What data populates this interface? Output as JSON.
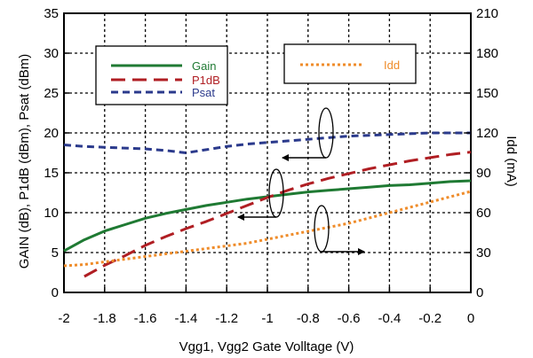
{
  "chart_data": {
    "type": "line",
    "title": "",
    "xlabel": "Vgg1, Vgg2  Gate Volltage (V)",
    "ylabel": "GAIN (dB), P1dB (dBm), Psat (dBm)",
    "y2label": "Idd (mA)",
    "xlim": [
      -2,
      0
    ],
    "ylim": [
      0,
      35
    ],
    "y2lim": [
      0,
      210
    ],
    "grid": true,
    "x_ticks": [
      "-2",
      "-1.8",
      "-1.6",
      "-1.4",
      "-1.2",
      "-1",
      "-0.8",
      "-0.6",
      "-0.4",
      "-0.2",
      "0"
    ],
    "y_ticks": [
      "0",
      "5",
      "10",
      "15",
      "20",
      "25",
      "30",
      "35"
    ],
    "y2_ticks": [
      "0",
      "30",
      "60",
      "90",
      "120",
      "150",
      "180",
      "210"
    ],
    "series": [
      {
        "name": "Gain",
        "axis": "left",
        "color": "#1f7a33",
        "dash": "solid",
        "x": [
          -2,
          -1.9,
          -1.8,
          -1.7,
          -1.6,
          -1.5,
          -1.4,
          -1.3,
          -1.2,
          -1.1,
          -1.0,
          -0.9,
          -0.8,
          -0.7,
          -0.6,
          -0.5,
          -0.4,
          -0.3,
          -0.2,
          -0.1,
          0
        ],
        "y": [
          5.2,
          6.6,
          7.7,
          8.5,
          9.3,
          9.9,
          10.4,
          10.9,
          11.3,
          11.7,
          12.0,
          12.3,
          12.6,
          12.8,
          13.0,
          13.2,
          13.4,
          13.5,
          13.7,
          13.9,
          14.0
        ]
      },
      {
        "name": "P1dB",
        "axis": "left",
        "color": "#b01e23",
        "dash": "long-dash",
        "x": [
          -1.9,
          -1.8,
          -1.7,
          -1.6,
          -1.5,
          -1.4,
          -1.3,
          -1.2,
          -1.1,
          -1.0,
          -0.9,
          -0.8,
          -0.7,
          -0.6,
          -0.5,
          -0.4,
          -0.3,
          -0.2,
          -0.1,
          0
        ],
        "y": [
          2.0,
          3.4,
          4.6,
          5.9,
          7.0,
          8.0,
          8.9,
          9.9,
          10.9,
          11.9,
          12.8,
          13.6,
          14.3,
          14.9,
          15.5,
          16.0,
          16.5,
          16.9,
          17.3,
          17.6
        ]
      },
      {
        "name": "Psat",
        "axis": "left",
        "color": "#2b3a8c",
        "dash": "dash",
        "x": [
          -2,
          -1.9,
          -1.8,
          -1.7,
          -1.6,
          -1.5,
          -1.4,
          -1.3,
          -1.2,
          -1.1,
          -1.0,
          -0.9,
          -0.8,
          -0.7,
          -0.6,
          -0.5,
          -0.4,
          -0.3,
          -0.2,
          -0.1,
          0
        ],
        "y": [
          18.5,
          18.3,
          18.2,
          18.1,
          18.0,
          17.8,
          17.5,
          17.9,
          18.3,
          18.6,
          18.8,
          19.0,
          19.2,
          19.4,
          19.6,
          19.7,
          19.8,
          19.9,
          20.0,
          20.0,
          20.0
        ]
      },
      {
        "name": "Idd",
        "axis": "right",
        "color": "#ef8c2a",
        "dash": "dot",
        "x": [
          -2,
          -1.9,
          -1.8,
          -1.7,
          -1.6,
          -1.5,
          -1.4,
          -1.3,
          -1.2,
          -1.1,
          -1.0,
          -0.9,
          -0.8,
          -0.7,
          -0.6,
          -0.5,
          -0.4,
          -0.3,
          -0.2,
          -0.1,
          0
        ],
        "y": [
          20,
          21,
          23,
          25,
          27,
          29,
          31,
          33,
          35,
          37,
          40,
          43,
          46,
          49,
          52,
          56,
          60,
          64,
          68,
          72,
          76
        ]
      }
    ],
    "legend": {
      "box1": [
        "Gain",
        "P1dB",
        "Psat"
      ],
      "box2": [
        "Idd"
      ],
      "placement": "top"
    }
  }
}
